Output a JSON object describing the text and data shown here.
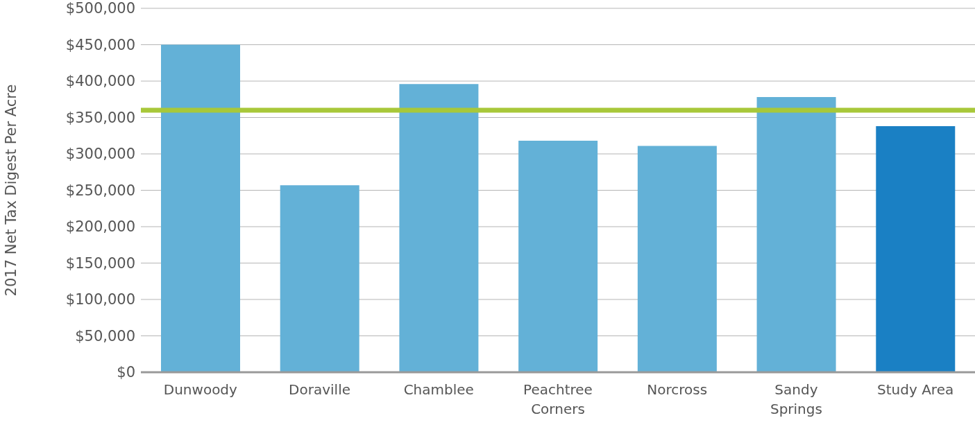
{
  "chart_data": {
    "type": "bar",
    "ylabel": "2017 Net Tax Digest Per Acre",
    "categories": [
      "Dunwoody",
      "Doraville",
      "Chamblee",
      "Peachtree Corners",
      "Norcross",
      "Sandy Springs",
      "Study Area"
    ],
    "values": [
      450000,
      257000,
      396000,
      318000,
      311000,
      378000,
      338000
    ],
    "colors": [
      "#63b1d7",
      "#63b1d7",
      "#63b1d7",
      "#63b1d7",
      "#63b1d7",
      "#63b1d7",
      "#1a80c4"
    ],
    "ylim": [
      0,
      500000
    ],
    "yticks": [
      {
        "value": 0,
        "label": "$0"
      },
      {
        "value": 50000,
        "label": "$50,000"
      },
      {
        "value": 100000,
        "label": "$100,000"
      },
      {
        "value": 150000,
        "label": "$150,000"
      },
      {
        "value": 200000,
        "label": "$200,000"
      },
      {
        "value": 250000,
        "label": "$250,000"
      },
      {
        "value": 300000,
        "label": "$300,000"
      },
      {
        "value": 350000,
        "label": "$350,000"
      },
      {
        "value": 400000,
        "label": "$400,000"
      },
      {
        "value": 450000,
        "label": "$450,000"
      },
      {
        "value": 500000,
        "label": "$500,000"
      }
    ],
    "ref_lines": [
      {
        "axis": "y",
        "value": 360000,
        "color": "#a8c83a"
      }
    ],
    "grid": "y"
  }
}
